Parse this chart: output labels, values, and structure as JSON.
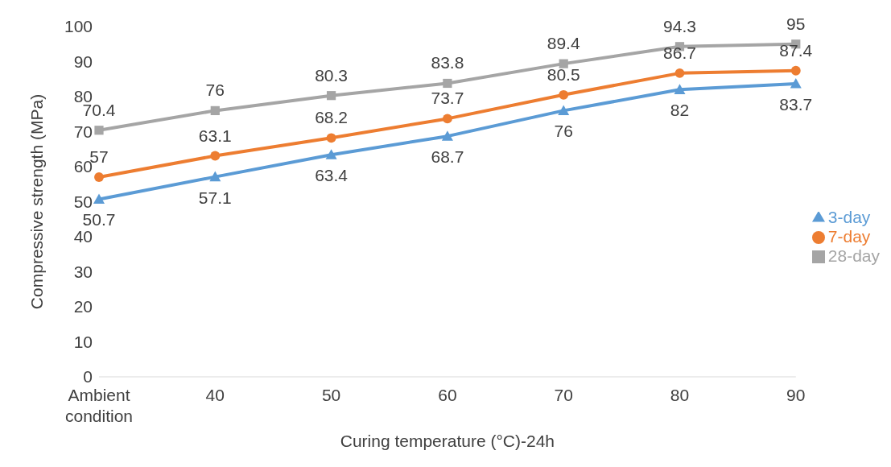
{
  "chart_data": {
    "type": "line",
    "xlabel": "Curing temperature (°C)-24h",
    "ylabel": "Compressive strength (MPa)",
    "categories": [
      "Ambient condition",
      "40",
      "50",
      "60",
      "70",
      "80",
      "90"
    ],
    "series": [
      {
        "name": "3-day",
        "color": "#5b9bd5",
        "marker": "triangle",
        "values": [
          50.7,
          57.1,
          63.4,
          68.7,
          76,
          82,
          83.7
        ]
      },
      {
        "name": "7-day",
        "color": "#ed7d31",
        "marker": "circle",
        "values": [
          57,
          63.1,
          68.2,
          73.7,
          80.5,
          86.7,
          87.4
        ]
      },
      {
        "name": "28-day",
        "color": "#a5a5a5",
        "marker": "square",
        "values": [
          70.4,
          76,
          80.3,
          83.8,
          89.4,
          94.3,
          95
        ]
      }
    ],
    "ylim": [
      0,
      100
    ],
    "yticks": [
      0,
      10,
      20,
      30,
      40,
      50,
      60,
      70,
      80,
      90,
      100
    ],
    "grid": false,
    "legend": "right",
    "data_labels": true,
    "line_style": "solid"
  }
}
